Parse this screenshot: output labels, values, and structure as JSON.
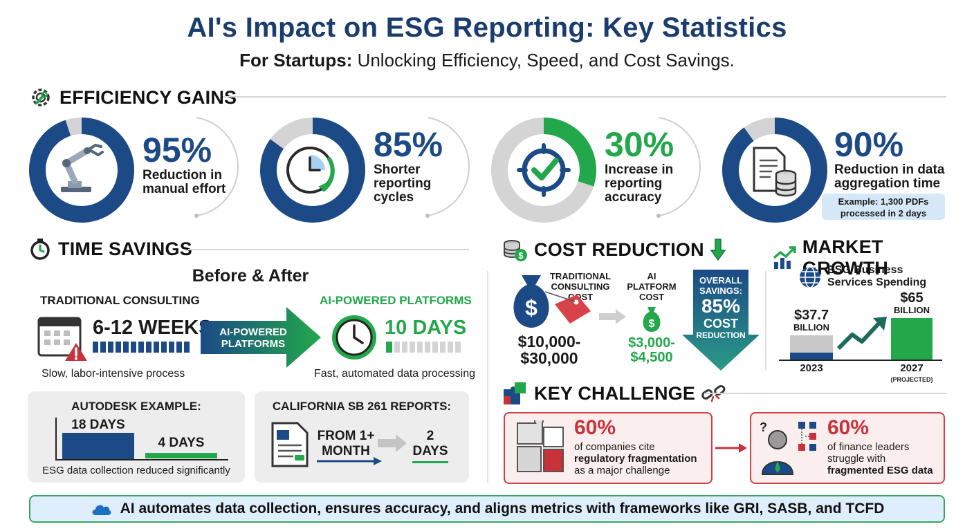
{
  "header": {
    "title": "AI's Impact on ESG Reporting: Key Statistics",
    "subtitle_bold": "For Startups:",
    "subtitle_rest": "Unlocking Efficiency, Speed, and Cost Savings."
  },
  "efficiency": {
    "heading": "EFFICIENCY GAINS",
    "stats": [
      {
        "value": "95%",
        "desc_line1": "Reduction in",
        "desc_line2": "manual effort",
        "fraction": 0.95,
        "color": "#1b4a86",
        "icon": "robot-arm-icon"
      },
      {
        "value": "85%",
        "desc_line1": "Shorter",
        "desc_line2": "reporting",
        "desc_line3": "cycles",
        "fraction": 0.85,
        "color": "#1b4a86",
        "icon": "clock-refresh-icon"
      },
      {
        "value": "30%",
        "desc_line1": "Increase in",
        "desc_line2": "reporting",
        "desc_line3": "accuracy",
        "fraction": 0.3,
        "color": "#22a84a",
        "icon": "target-check-icon"
      },
      {
        "value": "90%",
        "desc_line1": "Reduction in data",
        "desc_line2": "aggregation time",
        "fraction": 0.9,
        "color": "#1b4a86",
        "icon": "document-database-icon"
      }
    ],
    "example_line1": "Example: 1,300 PDFs",
    "example_line2": "processed in 2 days"
  },
  "time_savings": {
    "heading": "TIME SAVINGS",
    "before_after": "Before & After",
    "traditional_label": "TRADITIONAL CONSULTING",
    "traditional_value": "6-12 WEEKS",
    "traditional_note": "Slow, labor-intensive process",
    "arrow_line1": "AI-POWERED",
    "arrow_line2": "PLATFORMS",
    "ai_label": "AI-POWERED PLATFORMS",
    "ai_value": "10 DAYS",
    "ai_note": "Fast, automated data processing",
    "autodesk": {
      "title": "AUTODESK EXAMPLE:",
      "before": "18 DAYS",
      "after": "4 DAYS",
      "before_days": 18,
      "after_days": 4,
      "note": "ESG data collection reduced significantly"
    },
    "california": {
      "title": "CALIFORNIA SB 261 REPORTS:",
      "from_line1": "FROM 1+",
      "from_line2": "MONTH",
      "to_line1": "2",
      "to_line2": "DAYS"
    }
  },
  "cost": {
    "heading": "COST REDUCTION",
    "trad_line1": "TRADITIONAL",
    "trad_line2": "CONSULTING",
    "trad_line3": "COST",
    "trad_value_line1": "$10,000-",
    "trad_value_line2": "$30,000",
    "ai_line1": "AI",
    "ai_line2": "PLATFORM",
    "ai_line3": "COST",
    "ai_value_line1": "$3,000-",
    "ai_value_line2": "$4,500",
    "overall_line1": "OVERALL",
    "overall_line2": "SAVINGS:",
    "overall_pct": "85%",
    "overall_line3": "COST",
    "overall_line4": "REDUCTION"
  },
  "market": {
    "heading": "MARKET GROWTH",
    "subtitle_line1": "ESG Business",
    "subtitle_line2": "Services Spending",
    "bar1_value": "$37.7",
    "bar1_unit": "BILLION",
    "bar1_year": "2023",
    "bar1_amount": 37.7,
    "bar2_value": "$65",
    "bar2_unit": "BILLION",
    "bar2_year": "2027",
    "bar2_note": "(PROJECTED)",
    "bar2_amount": 65
  },
  "challenge": {
    "heading": "KEY CHALLENGE",
    "left_pct": "60%",
    "left_line1": "of companies cite",
    "left_line2": "regulatory fragmentation",
    "left_line3": "as a major challenge",
    "right_pct": "60%",
    "right_line1": "of finance leaders",
    "right_line2": "struggle with",
    "right_line3": "fragmented ESG data"
  },
  "footer": {
    "text": "AI automates data collection, ensures accuracy, and aligns metrics with frameworks like GRI, SASB, and TCFD"
  }
}
